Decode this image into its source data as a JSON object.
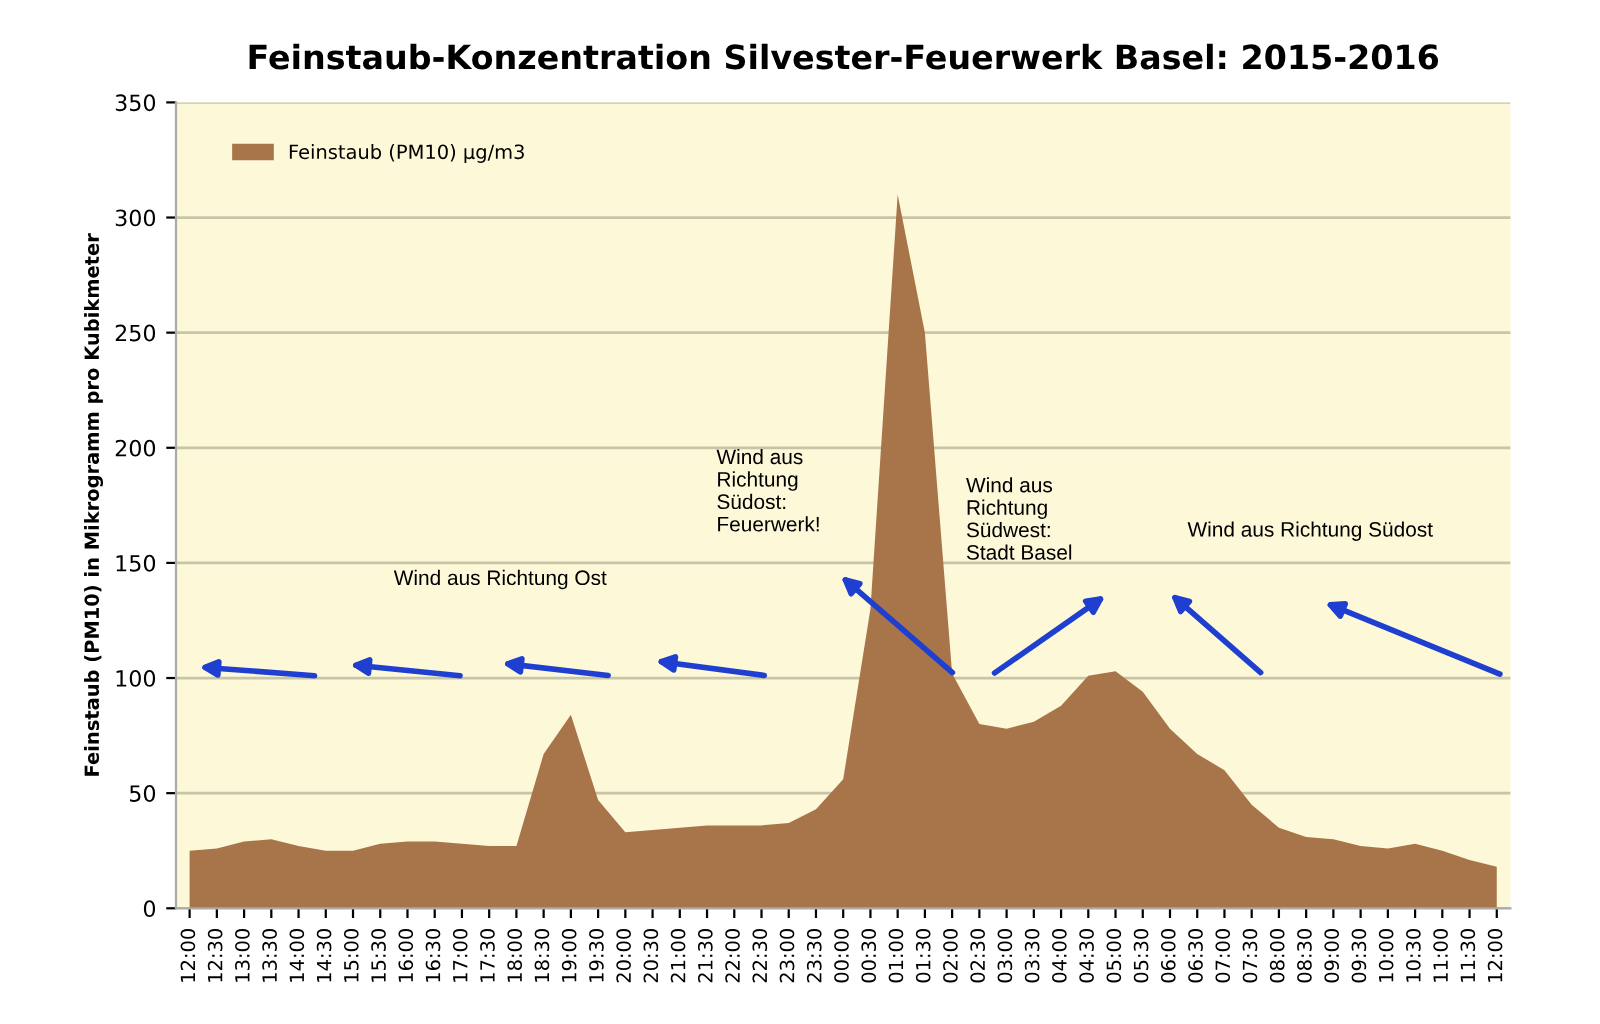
{
  "chart_data": {
    "type": "area",
    "title": "Feinstaub-Konzentration Silvester-Feuerwerk Basel: 2015-2016",
    "ylabel": "Feinstaub (PM10) in Mikrogramm pro Kubikmeter",
    "categories": [
      "12:00",
      "12:30",
      "13:00",
      "13:30",
      "14:00",
      "14:30",
      "15:00",
      "15:30",
      "16:00",
      "16:30",
      "17:00",
      "17:30",
      "18:00",
      "18:30",
      "19:00",
      "19:30",
      "20:00",
      "20:30",
      "21:00",
      "21:30",
      "22:00",
      "22:30",
      "23:00",
      "23:30",
      "00:00",
      "00:30",
      "01:00",
      "01:30",
      "02:00",
      "02:30",
      "03:00",
      "03:30",
      "04:00",
      "04:30",
      "05:00",
      "05:30",
      "06:00",
      "06:30",
      "07:00",
      "07:30",
      "08:00",
      "08:30",
      "09:00",
      "09:30",
      "10:00",
      "10:30",
      "11:00",
      "11:30",
      "12:00"
    ],
    "series": [
      {
        "name": "Feinstaub (PM10) µg/m3",
        "color": "#a8754a",
        "values": [
          25,
          26,
          29,
          30,
          27,
          25,
          25,
          28,
          29,
          29,
          28,
          27,
          27,
          67,
          84,
          47,
          33,
          34,
          35,
          36,
          36,
          36,
          37,
          43,
          56,
          130,
          310,
          250,
          102,
          80,
          78,
          81,
          88,
          101,
          103,
          94,
          78,
          67,
          60,
          45,
          35,
          31,
          30,
          27,
          26,
          28,
          25,
          21,
          18
        ]
      }
    ],
    "ylim": [
      0,
      350
    ],
    "yticks": [
      0,
      50,
      100,
      150,
      200,
      250,
      300,
      350
    ],
    "grid": "y",
    "legend": "top left",
    "annotations": [
      "Wind aus Richtung Ost",
      "Wind aus\nRichtung\nSüdost:\nFeuerwerk!",
      "Wind aus\nRichtung\nSüdwest:\nStadt Basel",
      "Wind aus Richtung Südost"
    ]
  }
}
